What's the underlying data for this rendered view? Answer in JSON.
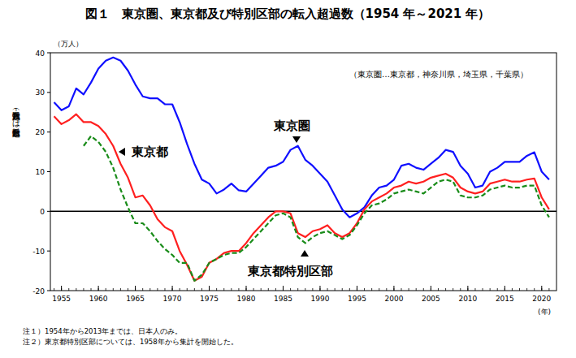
{
  "chart_data": {
    "type": "line",
    "title": "図１　東京圏、東京都及び特別区部の転入超過数（1954 年～2021 年）",
    "y_unit": "（万人）",
    "y_label": "転入超過数（－は転出超過数）",
    "x_label": "(年)",
    "note": "（東京圏…東京都，神奈川県，埼玉県，千葉県）",
    "footnotes": [
      "注１）1954年から2013年までは、日本人のみ。",
      "注２）東京都特別区部については、1958年から集計を開始した。"
    ],
    "x": [
      1954,
      1955,
      1956,
      1957,
      1958,
      1959,
      1960,
      1961,
      1962,
      1963,
      1964,
      1965,
      1966,
      1967,
      1968,
      1969,
      1970,
      1971,
      1972,
      1973,
      1974,
      1975,
      1976,
      1977,
      1978,
      1979,
      1980,
      1981,
      1982,
      1983,
      1984,
      1985,
      1986,
      1987,
      1988,
      1989,
      1990,
      1991,
      1992,
      1993,
      1994,
      1995,
      1996,
      1997,
      1998,
      1999,
      2000,
      2001,
      2002,
      2003,
      2004,
      2005,
      2006,
      2007,
      2008,
      2009,
      2010,
      2011,
      2012,
      2013,
      2014,
      2015,
      2016,
      2017,
      2018,
      2019,
      2020,
      2021
    ],
    "series": [
      {
        "name": "東京圏",
        "color": "#1010ff",
        "line_style": "solid",
        "values": [
          27.5,
          25.5,
          26.5,
          31,
          29.5,
          32.5,
          36,
          38,
          38.8,
          38,
          35.5,
          32,
          29,
          28.5,
          28.5,
          27,
          27,
          22.5,
          17,
          12,
          8,
          7,
          4.5,
          5.5,
          7,
          5.3,
          5,
          7,
          9,
          11,
          11.5,
          12.5,
          15.5,
          16.5,
          13,
          11.5,
          9.5,
          7.5,
          4,
          0.5,
          -1.5,
          -0.5,
          1,
          4,
          6,
          6.5,
          8,
          11.5,
          12,
          11,
          10.5,
          12,
          13.5,
          15.5,
          15,
          11.5,
          9.5,
          6,
          6.5,
          10,
          11,
          12.5,
          12.5,
          12.5,
          14,
          14.9,
          10,
          8
        ]
      },
      {
        "name": "東京都",
        "color": "#ff2020",
        "line_style": "solid",
        "values": [
          24,
          22,
          23,
          24.5,
          22.5,
          22.5,
          21.5,
          19.5,
          16.5,
          12,
          8.5,
          3.5,
          4,
          1.5,
          -2,
          -4,
          -5,
          -10,
          -13.5,
          -17.5,
          -16.5,
          -13,
          -12,
          -10.5,
          -10,
          -10,
          -8,
          -5.5,
          -3.5,
          -1.5,
          0,
          0,
          -0.5,
          -5.5,
          -6.5,
          -5,
          -4.5,
          -3.5,
          -5.5,
          -6.5,
          -5.5,
          -3,
          0.5,
          2.5,
          3.5,
          4.5,
          6,
          6.5,
          7.5,
          7,
          7.5,
          8.5,
          9,
          9.5,
          8.5,
          6,
          5,
          4.5,
          5,
          7,
          7.5,
          8,
          7.5,
          7.5,
          8,
          8.3,
          3.5,
          0.5
        ]
      },
      {
        "name": "東京都特別区部",
        "color": "#1a8c1a",
        "line_style": "dashed",
        "values": [
          null,
          null,
          null,
          null,
          16.5,
          19,
          17.5,
          15,
          11,
          5.5,
          1,
          -3,
          -3,
          -5,
          -7.5,
          -9.5,
          -11,
          -13,
          -13,
          -17.5,
          -16,
          -13,
          -12,
          -11,
          -10.5,
          -10.5,
          -9,
          -7,
          -5,
          -3,
          -1,
          -0.5,
          -1.5,
          -6.5,
          -8,
          -6.5,
          -5.5,
          -5,
          -6,
          -7,
          -6,
          -3.5,
          -0.5,
          1.5,
          2,
          3,
          4.5,
          5,
          5.5,
          5,
          4.5,
          6,
          7.5,
          8,
          7.5,
          4,
          3.5,
          3.5,
          4,
          5.5,
          6,
          6.5,
          6,
          6,
          6.5,
          6.5,
          1.5,
          -1.5
        ]
      }
    ],
    "xlim": [
      1953.5,
      2022
    ],
    "xticks": [
      1955,
      1960,
      1965,
      1970,
      1975,
      1980,
      1985,
      1990,
      1995,
      2000,
      2005,
      2010,
      2015,
      2020
    ],
    "ylim": [
      -20,
      40
    ],
    "yticks": [
      -20,
      -10,
      0,
      10,
      20,
      30,
      40
    ],
    "grid": false
  }
}
